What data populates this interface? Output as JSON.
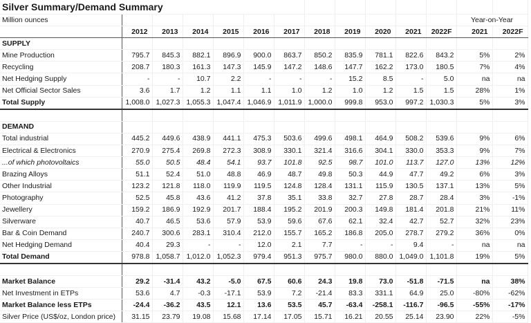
{
  "title": "Silver Summary/Demand Summary",
  "units": "Million ounces",
  "yoy_header": "Year-on-Year",
  "years": [
    "2012",
    "2013",
    "2014",
    "2015",
    "2016",
    "2017",
    "2018",
    "2019",
    "2020",
    "2021",
    "2022F"
  ],
  "yoy_years": [
    "2021",
    "2022F"
  ],
  "supply": {
    "heading": "SUPPLY",
    "rows": [
      {
        "label": "Mine Production",
        "values": [
          "795.7",
          "845.3",
          "882.1",
          "896.9",
          "900.0",
          "863.7",
          "850.2",
          "835.9",
          "781.1",
          "822.6",
          "843.2"
        ],
        "yoy": [
          "5%",
          "2%"
        ]
      },
      {
        "label": "Recycling",
        "values": [
          "208.7",
          "180.3",
          "161.3",
          "147.3",
          "145.9",
          "147.2",
          "148.6",
          "147.7",
          "162.2",
          "173.0",
          "180.5"
        ],
        "yoy": [
          "7%",
          "4%"
        ]
      },
      {
        "label": "Net Hedging Supply",
        "values": [
          "-",
          "-",
          "10.7",
          "2.2",
          "-",
          "-",
          "-",
          "15.2",
          "8.5",
          "-",
          "5.0"
        ],
        "yoy": [
          "na",
          "na"
        ]
      },
      {
        "label": "Net Official Sector Sales",
        "values": [
          "3.6",
          "1.7",
          "1.2",
          "1.1",
          "1.1",
          "1.0",
          "1.2",
          "1.0",
          "1.2",
          "1.5",
          "1.5"
        ],
        "yoy": [
          "28%",
          "1%"
        ]
      }
    ],
    "total": {
      "label": "Total Supply",
      "values": [
        "1,008.0",
        "1,027.3",
        "1,055.3",
        "1,047.4",
        "1,046.9",
        "1,011.9",
        "1,000.0",
        "999.8",
        "953.0",
        "997.2",
        "1,030.3"
      ],
      "yoy": [
        "5%",
        "3%"
      ]
    }
  },
  "demand": {
    "heading": "DEMAND",
    "rows": [
      {
        "label": "Total industrial",
        "values": [
          "445.2",
          "449.6",
          "438.9",
          "441.1",
          "475.3",
          "503.6",
          "499.6",
          "498.1",
          "464.9",
          "508.2",
          "539.6"
        ],
        "yoy": [
          "9%",
          "6%"
        ]
      },
      {
        "label": "Electrical & Electronics",
        "values": [
          "270.9",
          "275.4",
          "269.8",
          "272.3",
          "308.9",
          "330.1",
          "321.4",
          "316.6",
          "304.1",
          "330.0",
          "353.3"
        ],
        "yoy": [
          "9%",
          "7%"
        ]
      },
      {
        "label": "...of which photovoltaics",
        "values": [
          "55.0",
          "50.5",
          "48.4",
          "54.1",
          "93.7",
          "101.8",
          "92.5",
          "98.7",
          "101.0",
          "113.7",
          "127.0"
        ],
        "yoy": [
          "13%",
          "12%"
        ],
        "italic": true
      },
      {
        "label": "Brazing Alloys",
        "values": [
          "51.1",
          "52.4",
          "51.0",
          "48.8",
          "46.9",
          "48.7",
          "49.8",
          "50.3",
          "44.9",
          "47.7",
          "49.2"
        ],
        "yoy": [
          "6%",
          "3%"
        ]
      },
      {
        "label": "Other Industrial",
        "values": [
          "123.2",
          "121.8",
          "118.0",
          "119.9",
          "119.5",
          "124.8",
          "128.4",
          "131.1",
          "115.9",
          "130.5",
          "137.1"
        ],
        "yoy": [
          "13%",
          "5%"
        ]
      },
      {
        "label": "Photography",
        "values": [
          "52.5",
          "45.8",
          "43.6",
          "41.2",
          "37.8",
          "35.1",
          "33.8",
          "32.7",
          "27.8",
          "28.7",
          "28.4"
        ],
        "yoy": [
          "3%",
          "-1%"
        ]
      },
      {
        "label": "Jewellery",
        "values": [
          "159.2",
          "186.9",
          "192.9",
          "201.7",
          "188.4",
          "195.2",
          "201.9",
          "200.3",
          "149.8",
          "181.4",
          "201.8"
        ],
        "yoy": [
          "21%",
          "11%"
        ]
      },
      {
        "label": "Silverware",
        "values": [
          "40.7",
          "46.5",
          "53.6",
          "57.9",
          "53.9",
          "59.6",
          "67.6",
          "62.1",
          "32.4",
          "42.7",
          "52.7"
        ],
        "yoy": [
          "32%",
          "23%"
        ]
      },
      {
        "label": "Bar & Coin Demand",
        "values": [
          "240.7",
          "300.6",
          "283.1",
          "310.4",
          "212.0",
          "155.7",
          "165.2",
          "186.8",
          "205.0",
          "278.7",
          "279.2"
        ],
        "yoy": [
          "36%",
          "0%"
        ]
      },
      {
        "label": "Net Hedging Demand",
        "values": [
          "40.4",
          "29.3",
          "-",
          "-",
          "12.0",
          "2.1",
          "7.7",
          "-",
          "-",
          "9.4",
          "-"
        ],
        "yoy": [
          "na",
          "na"
        ]
      }
    ],
    "total": {
      "label": "Total Demand",
      "values": [
        "978.8",
        "1,058.7",
        "1,012.0",
        "1,052.3",
        "979.4",
        "951.3",
        "975.7",
        "980.0",
        "880.0",
        "1,049.0",
        "1,101.8"
      ],
      "yoy": [
        "19%",
        "5%"
      ]
    }
  },
  "balance": {
    "rows": [
      {
        "label": "Market Balance",
        "values": [
          "29.2",
          "-31.4",
          "43.2",
          "-5.0",
          "67.5",
          "60.6",
          "24.3",
          "19.8",
          "73.0",
          "-51.8",
          "-71.5"
        ],
        "yoy": [
          "na",
          "38%"
        ],
        "bold": true
      },
      {
        "label": "Net Investment in ETPs",
        "values": [
          "53.6",
          "4.7",
          "-0.3",
          "-17.1",
          "53.9",
          "7.2",
          "-21.4",
          "83.3",
          "331.1",
          "64.9",
          "25.0"
        ],
        "yoy": [
          "-80%",
          "-62%"
        ],
        "bold": false
      },
      {
        "label": "Market Balance less ETPs",
        "values": [
          "-24.4",
          "-36.2",
          "43.5",
          "12.1",
          "13.6",
          "53.5",
          "45.7",
          "-63.4",
          "-258.1",
          "-116.7",
          "-96.5"
        ],
        "yoy": [
          "-55%",
          "-17%"
        ],
        "bold": true
      },
      {
        "label": "Silver Price (US$/oz, London price)",
        "values": [
          "31.15",
          "23.79",
          "19.08",
          "15.68",
          "17.14",
          "17.05",
          "15.71",
          "16.21",
          "20.55",
          "25.14",
          "23.90"
        ],
        "yoy": [
          "22%",
          "-5%"
        ],
        "bold": false
      }
    ]
  }
}
